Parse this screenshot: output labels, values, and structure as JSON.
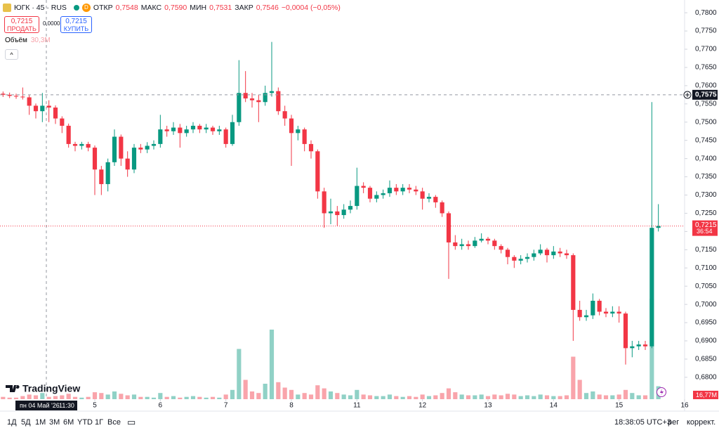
{
  "header": {
    "symbol": "ЮГК · 45 · RUS",
    "badge": "D",
    "open_label": "ОТКР",
    "open": "0,7548",
    "high_label": "МАКС",
    "high": "0,7590",
    "low_label": "МИН",
    "low": "0,7531",
    "close_label": "ЗАКР",
    "close": "0,7546",
    "change": "−0,0004 (−0,05%)"
  },
  "trade": {
    "sell_price": "0,7215",
    "sell_label": "ПРОДАТЬ",
    "spread": "0,0000",
    "buy_price": "0,7215",
    "buy_label": "КУПИТЬ"
  },
  "volume_legend": {
    "label": "Объём",
    "value": "30,3M"
  },
  "chart_data": {
    "type": "candlestick",
    "up_color": "#089981",
    "down_color": "#f23645",
    "ylim": [
      0.674,
      0.7835
    ],
    "yticks": [
      {
        "value": 0.78,
        "label": "0,7800"
      },
      {
        "value": 0.775,
        "label": "0,7750"
      },
      {
        "value": 0.77,
        "label": "0,7700"
      },
      {
        "value": 0.765,
        "label": "0,7650"
      },
      {
        "value": 0.76,
        "label": "0,7600"
      },
      {
        "value": 0.755,
        "label": "0,7550"
      },
      {
        "value": 0.75,
        "label": "0,7500"
      },
      {
        "value": 0.745,
        "label": "0,7450"
      },
      {
        "value": 0.74,
        "label": "0,7400"
      },
      {
        "value": 0.735,
        "label": "0,7350"
      },
      {
        "value": 0.73,
        "label": "0,7300"
      },
      {
        "value": 0.725,
        "label": "0,7250"
      },
      {
        "value": 0.72,
        "label": "0,7200"
      },
      {
        "value": 0.715,
        "label": "0,7150"
      },
      {
        "value": 0.71,
        "label": "0,7100"
      },
      {
        "value": 0.705,
        "label": "0,7050"
      },
      {
        "value": 0.7,
        "label": "0,7000"
      },
      {
        "value": 0.695,
        "label": "0,6950"
      },
      {
        "value": 0.69,
        "label": "0,6900"
      },
      {
        "value": 0.685,
        "label": "0,6850"
      },
      {
        "value": 0.68,
        "label": "0,6800"
      }
    ],
    "xlim": [
      -0.464,
      104
    ],
    "xticks": [
      {
        "value": 14,
        "label": "5"
      },
      {
        "value": 24,
        "label": "6"
      },
      {
        "value": 34,
        "label": "7"
      },
      {
        "value": 44,
        "label": "8"
      },
      {
        "value": 54,
        "label": "11"
      },
      {
        "value": 64,
        "label": "12"
      },
      {
        "value": 74,
        "label": "13"
      },
      {
        "value": 84,
        "label": "14"
      },
      {
        "value": 94,
        "label": "15"
      },
      {
        "value": 104,
        "label": "16"
      }
    ],
    "ohlc": [
      [
        0.7578,
        0.7584,
        0.7569,
        0.7575
      ],
      [
        0.7575,
        0.7581,
        0.7566,
        0.7572
      ],
      [
        0.7572,
        0.7578,
        0.7564,
        0.757
      ],
      [
        0.757,
        0.7595,
        0.7562,
        0.7568
      ],
      [
        0.7568,
        0.7574,
        0.752,
        0.7545
      ],
      [
        0.7545,
        0.7551,
        0.751,
        0.753
      ],
      [
        0.753,
        0.758,
        0.75,
        0.7545
      ],
      [
        0.7545,
        0.756,
        0.75,
        0.754
      ],
      [
        0.754,
        0.7546,
        0.7495,
        0.751
      ],
      [
        0.751,
        0.7516,
        0.747,
        0.749
      ],
      [
        0.749,
        0.7496,
        0.743,
        0.744
      ],
      [
        0.744,
        0.7446,
        0.742,
        0.7435
      ],
      [
        0.7435,
        0.7446,
        0.7425,
        0.744
      ],
      [
        0.744,
        0.7446,
        0.742,
        0.743
      ],
      [
        0.743,
        0.7436,
        0.73,
        0.737
      ],
      [
        0.737,
        0.738,
        0.73,
        0.733
      ],
      [
        0.733,
        0.74,
        0.731,
        0.739
      ],
      [
        0.739,
        0.748,
        0.738,
        0.746
      ],
      [
        0.746,
        0.7466,
        0.738,
        0.74
      ],
      [
        0.74,
        0.742,
        0.735,
        0.737
      ],
      [
        0.737,
        0.744,
        0.736,
        0.743
      ],
      [
        0.743,
        0.744,
        0.7415,
        0.7425
      ],
      [
        0.7425,
        0.7445,
        0.7415,
        0.7435
      ],
      [
        0.7435,
        0.745,
        0.7425,
        0.744
      ],
      [
        0.744,
        0.752,
        0.743,
        0.748
      ],
      [
        0.748,
        0.749,
        0.746,
        0.7475
      ],
      [
        0.7475,
        0.75,
        0.7465,
        0.7485
      ],
      [
        0.7485,
        0.7495,
        0.743,
        0.747
      ],
      [
        0.747,
        0.749,
        0.746,
        0.748
      ],
      [
        0.748,
        0.75,
        0.747,
        0.749
      ],
      [
        0.749,
        0.7495,
        0.747,
        0.748
      ],
      [
        0.748,
        0.7495,
        0.747,
        0.7485
      ],
      [
        0.7485,
        0.749,
        0.7465,
        0.7475
      ],
      [
        0.7475,
        0.749,
        0.7465,
        0.748
      ],
      [
        0.748,
        0.7485,
        0.743,
        0.744
      ],
      [
        0.744,
        0.752,
        0.7435,
        0.75
      ],
      [
        0.75,
        0.767,
        0.749,
        0.758
      ],
      [
        0.758,
        0.764,
        0.7555,
        0.7565
      ],
      [
        0.7565,
        0.758,
        0.754,
        0.756
      ],
      [
        0.756,
        0.7575,
        0.75,
        0.7555
      ],
      [
        0.7555,
        0.76,
        0.7545,
        0.758
      ],
      [
        0.758,
        0.772,
        0.757,
        0.7585
      ],
      [
        0.7585,
        0.7595,
        0.752,
        0.753
      ],
      [
        0.753,
        0.7545,
        0.749,
        0.751
      ],
      [
        0.751,
        0.752,
        0.738,
        0.747
      ],
      [
        0.747,
        0.749,
        0.745,
        0.748
      ],
      [
        0.748,
        0.7485,
        0.742,
        0.744
      ],
      [
        0.744,
        0.745,
        0.74,
        0.742
      ],
      [
        0.742,
        0.7425,
        0.729,
        0.731
      ],
      [
        0.731,
        0.732,
        0.721,
        0.725
      ],
      [
        0.725,
        0.729,
        0.722,
        0.7255
      ],
      [
        0.7255,
        0.727,
        0.7215,
        0.7245
      ],
      [
        0.7245,
        0.7275,
        0.7235,
        0.726
      ],
      [
        0.726,
        0.7285,
        0.725,
        0.727
      ],
      [
        0.727,
        0.7375,
        0.726,
        0.7325
      ],
      [
        0.7325,
        0.7335,
        0.7305,
        0.732
      ],
      [
        0.732,
        0.7325,
        0.728,
        0.729
      ],
      [
        0.729,
        0.731,
        0.728,
        0.73
      ],
      [
        0.73,
        0.7315,
        0.729,
        0.7305
      ],
      [
        0.7305,
        0.734,
        0.7295,
        0.732
      ],
      [
        0.732,
        0.733,
        0.73,
        0.731
      ],
      [
        0.731,
        0.733,
        0.73,
        0.732
      ],
      [
        0.732,
        0.733,
        0.7305,
        0.7315
      ],
      [
        0.7315,
        0.7325,
        0.73,
        0.731
      ],
      [
        0.731,
        0.732,
        0.726,
        0.729
      ],
      [
        0.729,
        0.7305,
        0.728,
        0.7295
      ],
      [
        0.7295,
        0.73,
        0.7265,
        0.728
      ],
      [
        0.728,
        0.7285,
        0.724,
        0.725
      ],
      [
        0.725,
        0.7255,
        0.707,
        0.717
      ],
      [
        0.717,
        0.719,
        0.715,
        0.716
      ],
      [
        0.716,
        0.718,
        0.715,
        0.7165
      ],
      [
        0.7165,
        0.7175,
        0.715,
        0.716
      ],
      [
        0.716,
        0.7185,
        0.7155,
        0.7175
      ],
      [
        0.7175,
        0.7195,
        0.717,
        0.718
      ],
      [
        0.718,
        0.7185,
        0.7165,
        0.7175
      ],
      [
        0.7175,
        0.718,
        0.715,
        0.716
      ],
      [
        0.716,
        0.7165,
        0.714,
        0.715
      ],
      [
        0.715,
        0.7155,
        0.711,
        0.713
      ],
      [
        0.713,
        0.7135,
        0.71,
        0.712
      ],
      [
        0.712,
        0.7135,
        0.711,
        0.7125
      ],
      [
        0.7125,
        0.714,
        0.7115,
        0.713
      ],
      [
        0.713,
        0.715,
        0.712,
        0.714
      ],
      [
        0.714,
        0.7165,
        0.7135,
        0.715
      ],
      [
        0.715,
        0.7155,
        0.7115,
        0.7135
      ],
      [
        0.7135,
        0.716,
        0.7125,
        0.7145
      ],
      [
        0.7145,
        0.7155,
        0.713,
        0.714
      ],
      [
        0.714,
        0.715,
        0.7125,
        0.7135
      ],
      [
        0.7135,
        0.714,
        0.69,
        0.6985
      ],
      [
        0.6985,
        0.701,
        0.6955,
        0.6965
      ],
      [
        0.6965,
        0.6985,
        0.6955,
        0.697
      ],
      [
        0.697,
        0.703,
        0.696,
        0.701
      ],
      [
        0.701,
        0.7015,
        0.697,
        0.698
      ],
      [
        0.698,
        0.699,
        0.6965,
        0.6975
      ],
      [
        0.6975,
        0.6995,
        0.6965,
        0.698
      ],
      [
        0.698,
        0.6995,
        0.695,
        0.6975
      ],
      [
        0.6975,
        0.698,
        0.6835,
        0.688
      ],
      [
        0.688,
        0.69,
        0.6855,
        0.6885
      ],
      [
        0.6885,
        0.69,
        0.6875,
        0.689
      ],
      [
        0.689,
        0.69,
        0.6875,
        0.6885
      ],
      [
        0.6885,
        0.7555,
        0.688,
        0.721
      ],
      [
        0.721,
        0.7275,
        0.72,
        0.7215
      ]
    ],
    "volume": {
      "values": [
        3,
        2,
        2,
        4,
        6,
        5,
        8,
        3,
        4,
        5,
        7,
        3,
        2,
        3,
        9,
        8,
        6,
        10,
        7,
        5,
        6,
        3,
        3,
        2,
        8,
        3,
        4,
        2,
        3,
        4,
        3,
        2,
        3,
        2,
        6,
        12,
        65,
        25,
        10,
        8,
        20,
        90,
        22,
        15,
        12,
        6,
        8,
        6,
        18,
        14,
        10,
        8,
        6,
        5,
        12,
        6,
        5,
        4,
        4,
        6,
        4,
        3,
        4,
        3,
        6,
        4,
        5,
        8,
        14,
        9,
        6,
        5,
        5,
        6,
        4,
        6,
        5,
        7,
        6,
        4,
        5,
        4,
        6,
        5,
        4,
        4,
        5,
        55,
        25,
        8,
        10,
        6,
        5,
        5,
        6,
        12,
        8,
        5,
        5,
        130,
        16.77
      ],
      "last_label": "16,77M"
    },
    "crosshair_price": {
      "value": 0.7575,
      "label": "0,7575"
    },
    "crosshair_time": "пн 04 Май '26",
    "crosshair_clock": "11:30",
    "last_price": {
      "value": 0.7215,
      "label": "0,7215"
    },
    "countdown": "36:54"
  },
  "watermark": "TradingView",
  "toolbar": {
    "ranges": [
      "1Д",
      "5Д",
      "1М",
      "3М",
      "6М",
      "YTD",
      "1Г",
      "Все"
    ],
    "clock": "18:38:05 UTC+3",
    "session": "рег",
    "adjust": "коррект."
  }
}
